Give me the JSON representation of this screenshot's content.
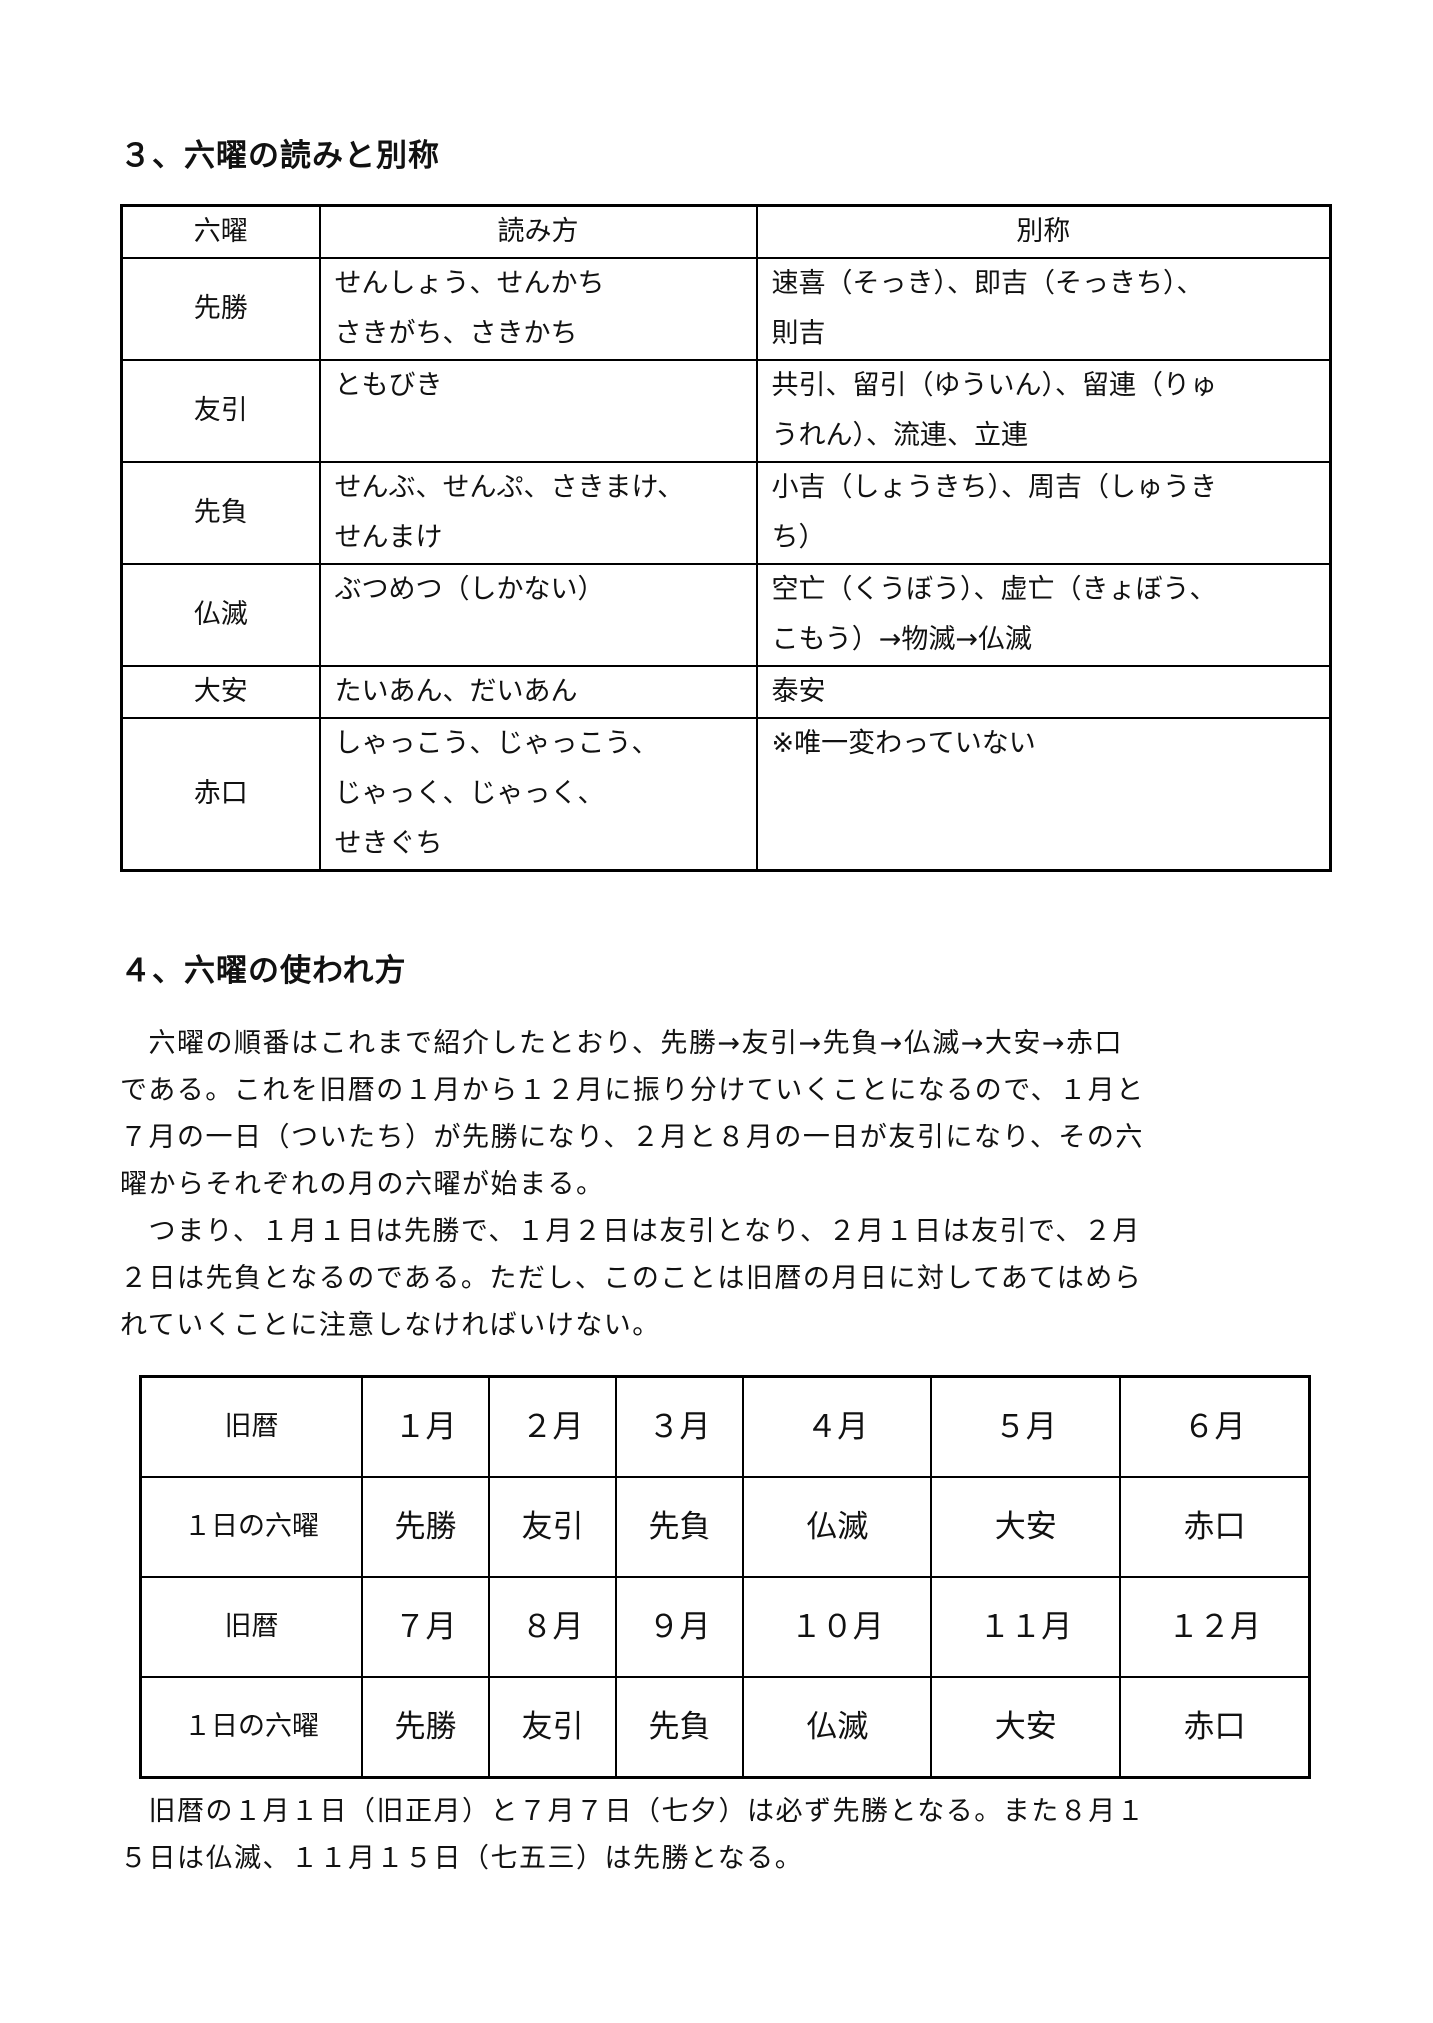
{
  "section3": {
    "heading": "３、六曜の読みと別称",
    "headers": [
      "六曜",
      "読み方",
      "別称"
    ],
    "rows": [
      {
        "name": "先勝",
        "reading": [
          "せんしょう、せんかち",
          "さきがち、さきかち"
        ],
        "alias": [
          "速喜（そっき）、即吉（そっきち）、",
          "則吉"
        ]
      },
      {
        "name": "友引",
        "reading": [
          "ともびき"
        ],
        "alias": [
          "共引、留引（ゆういん）、留連（りゅ",
          "うれん）、流連、立連"
        ]
      },
      {
        "name": "先負",
        "reading": [
          "せんぶ、せんぷ、さきまけ、",
          "せんまけ"
        ],
        "alias": [
          "小吉（しょうきち）、周吉（しゅうき",
          "ち）"
        ]
      },
      {
        "name": "仏滅",
        "reading": [
          "ぶつめつ（しかない）"
        ],
        "alias": [
          "空亡（くうぼう）、虚亡（きょぼう、",
          "こもう）→物滅→仏滅"
        ]
      },
      {
        "name": "大安",
        "reading": [
          "たいあん、だいあん"
        ],
        "alias": [
          "泰安"
        ]
      },
      {
        "name": "赤口",
        "reading": [
          "しゃっこう、じゃっこう、",
          "じゃっく、じゃっく、",
          "せきぐち"
        ],
        "alias": [
          "※唯一変わっていない"
        ]
      }
    ]
  },
  "section4": {
    "heading": "４、六曜の使われ方",
    "para1": [
      "　六曜の順番はこれまで紹介したとおり、先勝→友引→先負→仏滅→大安→赤口",
      "である。これを旧暦の１月から１２月に振り分けていくことになるので、１月と",
      "７月の一日（ついたち）が先勝になり、２月と８月の一日が友引になり、その六",
      "曜からそれぞれの月の六曜が始まる。"
    ],
    "para2": [
      "　つまり、１月１日は先勝で、１月２日は友引となり、２月１日は友引で、２月",
      "２日は先負となるのである。ただし、このことは旧暦の月日に対してあてはめら",
      "れていくことに注意しなければいけない。"
    ],
    "table": {
      "rows": [
        [
          "旧暦",
          "１月",
          "２月",
          "３月",
          "４月",
          "５月",
          "６月"
        ],
        [
          "１日の六曜",
          "先勝",
          "友引",
          "先負",
          "仏滅",
          "大安",
          "赤口"
        ],
        [
          "旧暦",
          "７月",
          "８月",
          "９月",
          "１０月",
          "１１月",
          "１２月"
        ],
        [
          "１日の六曜",
          "先勝",
          "友引",
          "先負",
          "仏滅",
          "大安",
          "赤口"
        ]
      ]
    },
    "para3": [
      "　旧暦の１月１日（旧正月）と７月７日（七夕）は必ず先勝となる。また８月１",
      "５日は仏滅、１１月１５日（七五三）は先勝となる。"
    ]
  }
}
